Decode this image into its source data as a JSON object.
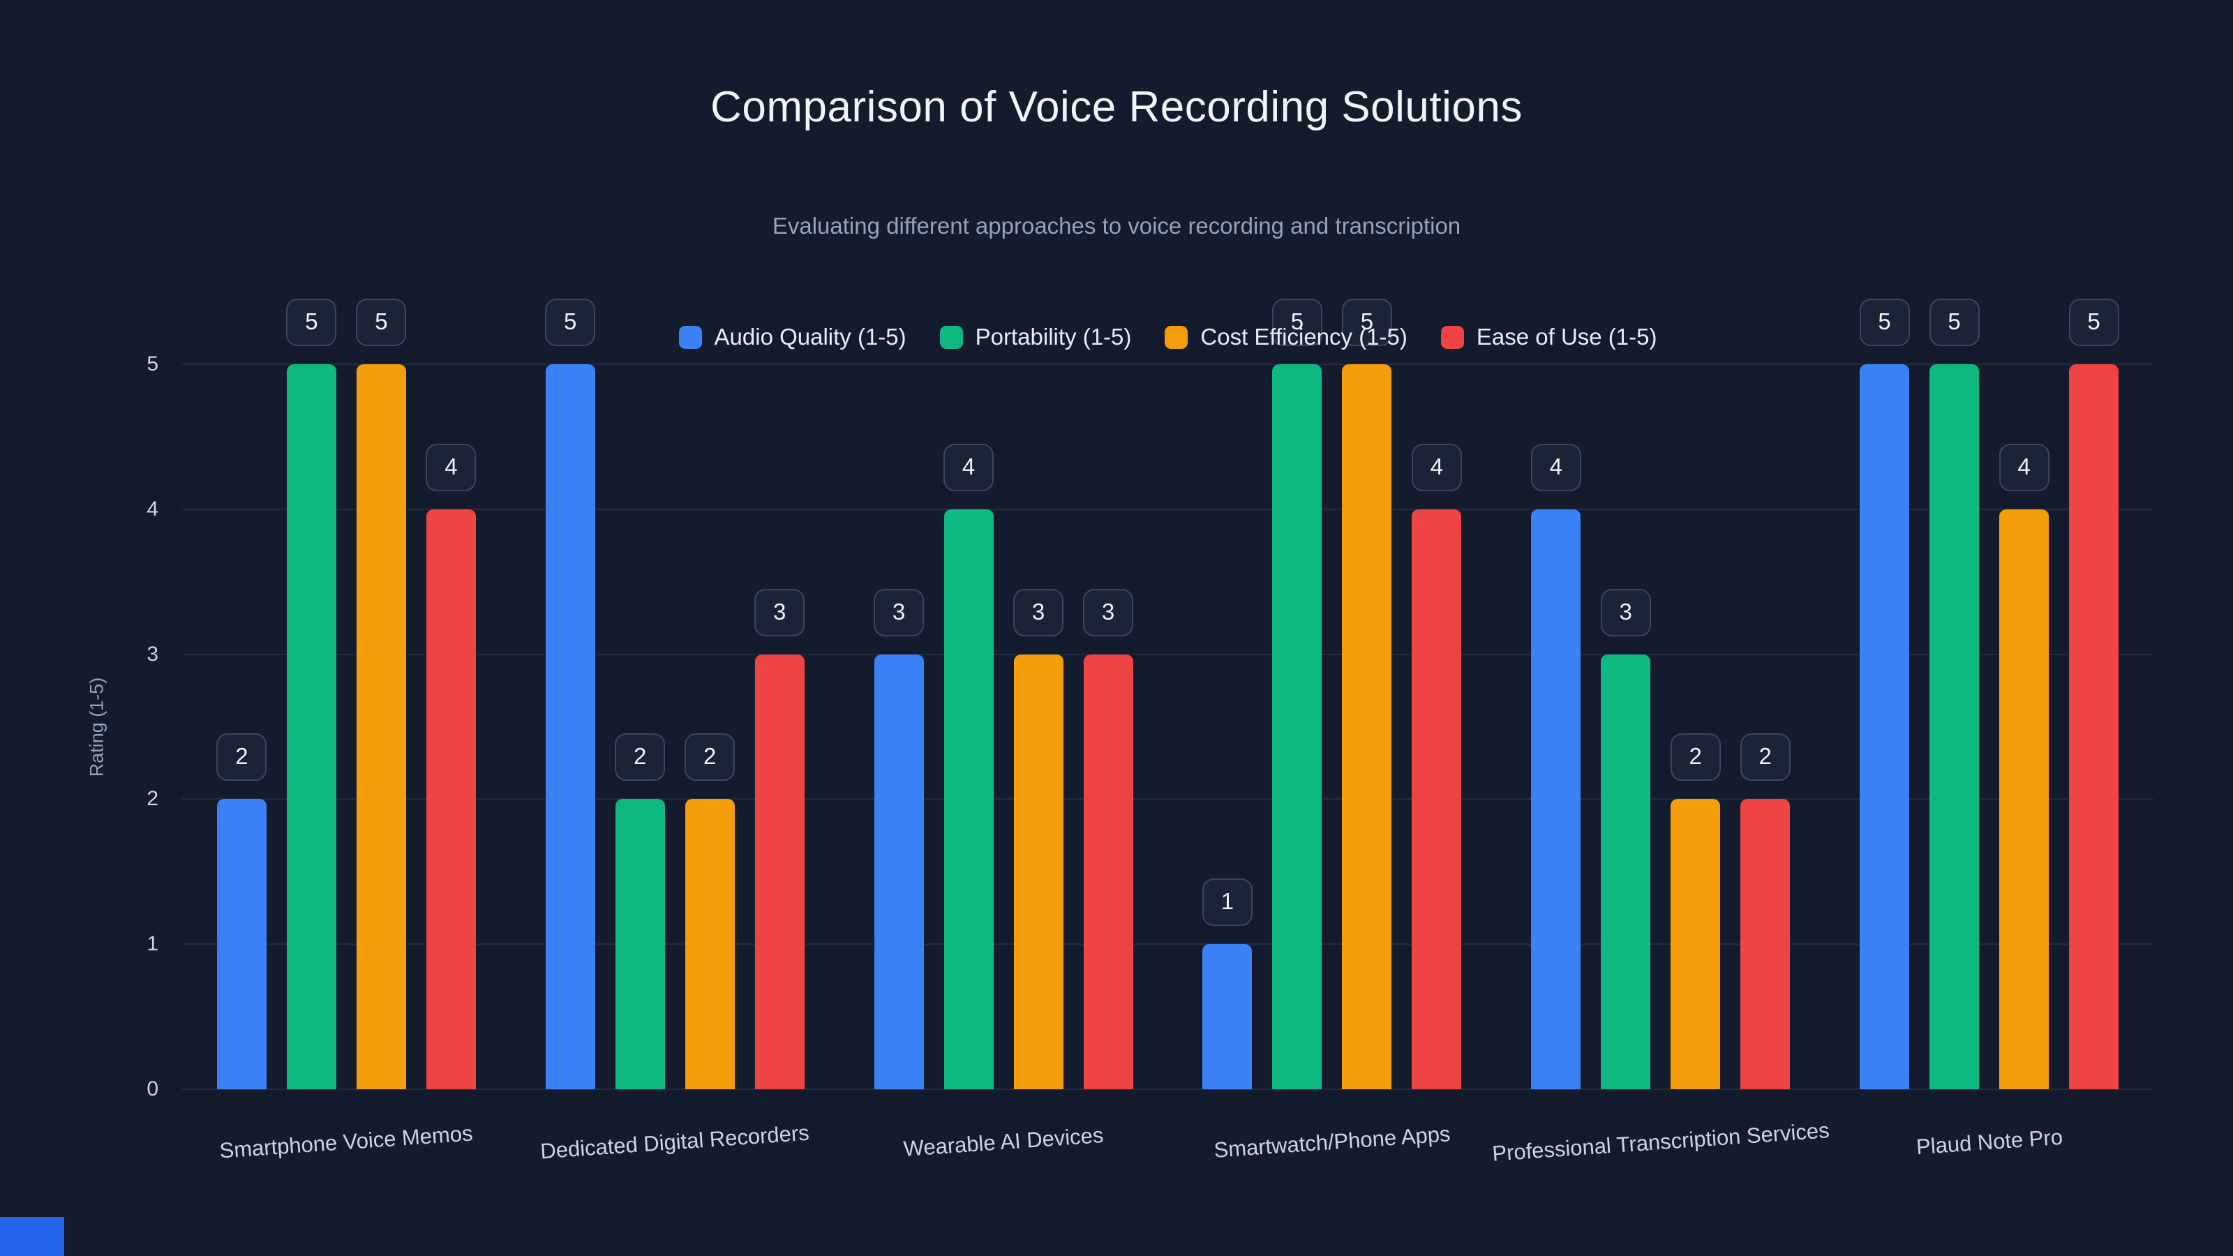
{
  "chart_data": {
    "type": "bar",
    "title": "Comparison of Voice Recording Solutions",
    "subtitle": "Evaluating different approaches to voice recording and transcription",
    "categories": [
      "Smartphone Voice Memos",
      "Dedicated Digital Recorders",
      "Wearable AI Devices",
      "Smartwatch/Phone Apps",
      "Professional Transcription Services",
      "Plaud Note Pro"
    ],
    "series": [
      {
        "name": "Audio Quality (1-5)",
        "color": "#3b82f6",
        "values": [
          2,
          5,
          3,
          1,
          4,
          5
        ]
      },
      {
        "name": "Portability (1-5)",
        "color": "#10b981",
        "values": [
          5,
          2,
          4,
          5,
          3,
          5
        ]
      },
      {
        "name": "Cost Efficiency (1-5)",
        "color": "#f59e0b",
        "values": [
          5,
          2,
          3,
          5,
          2,
          4
        ]
      },
      {
        "name": "Ease of Use (1-5)",
        "color": "#ef4444",
        "values": [
          4,
          3,
          3,
          4,
          2,
          5
        ]
      }
    ],
    "xlabel": "",
    "ylabel": "Rating (1-5)",
    "ylim": [
      0,
      5
    ],
    "yticks": [
      0,
      1,
      2,
      3,
      4,
      5
    ],
    "grid": true,
    "legend_position": "top",
    "value_labels": true
  },
  "colors": {
    "background": "#131b2d",
    "badge_background": "#1b2437",
    "badge_border": "#3b465c",
    "gridline": "rgba(148,163,184,0.12)",
    "corner_accent": "#2563eb"
  }
}
